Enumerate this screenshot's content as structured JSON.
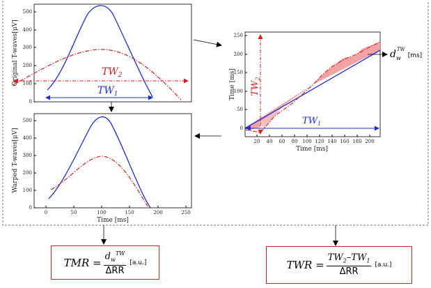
{
  "plot1": {
    "ylabel": "Original T-waves[μV]",
    "yticks": [
      "0",
      "100",
      "200",
      "300",
      "400",
      "500"
    ],
    "tw2_label": "TW",
    "tw2_sub": "2",
    "tw1_label": "TW",
    "tw1_sub": "1"
  },
  "plot2": {
    "ylabel": "Warped T-waves[μV]",
    "xlabel": "Time [ms]",
    "yticks": [
      "0",
      "100",
      "200",
      "300",
      "400",
      "500"
    ],
    "xticks": [
      "0",
      "50",
      "100",
      "150",
      "200",
      "250"
    ]
  },
  "plot3": {
    "ylabel": "Time [ms]",
    "xlabel": "Time [ms]",
    "yticks": [
      "0",
      "50",
      "100",
      "150",
      "200",
      "250"
    ],
    "xticks": [
      "20",
      "40",
      "60",
      "80",
      "100",
      "120",
      "140",
      "160",
      "180",
      "200"
    ],
    "tw2_label": "TW",
    "tw2_sub": "2",
    "tw1_label": "TW",
    "tw1_sub": "1",
    "dw_label": "d",
    "dw_sub": "w",
    "dw_sup": "TW",
    "dw_unit": "[ms]"
  },
  "formula_tmr": {
    "lhs": "TMR =",
    "num_base": "d",
    "num_sub": "w",
    "num_sup": "TW",
    "den": "ΔRR",
    "unit": "[a.u.]"
  },
  "formula_twr": {
    "lhs": "TWR =",
    "num_a": "TW",
    "num_a_sub": "2",
    "num_minus": "–",
    "num_b": "TW",
    "num_b_sub": "1",
    "den": "ΔRR",
    "unit": "[a.u.]"
  },
  "colors": {
    "blue": "#1a2fd6",
    "red": "#d81e1e",
    "fill": "#f4a3a3",
    "box": "#d12222"
  }
}
